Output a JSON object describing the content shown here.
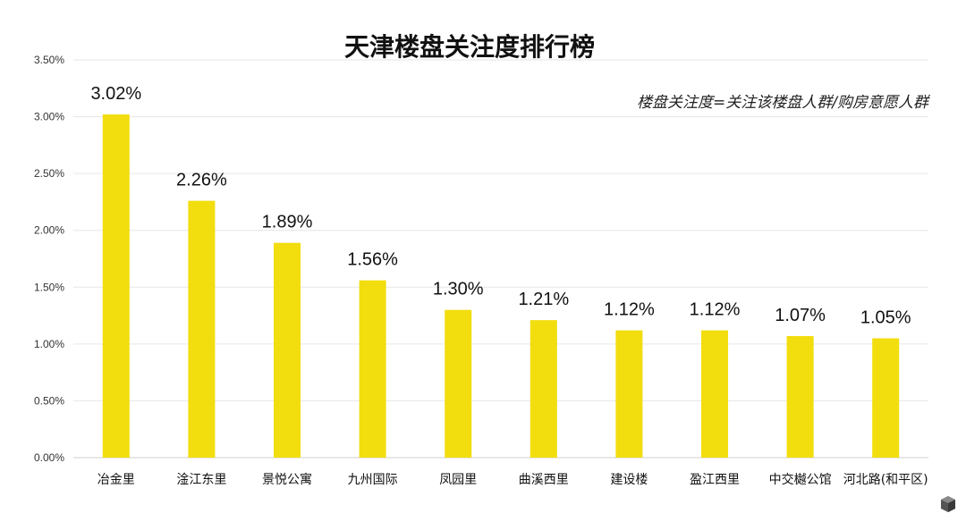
{
  "chart_data": {
    "type": "bar",
    "title": "天津楼盘关注度排行榜",
    "subtitle": "楼盘关注度=关注该楼盘人群/购房意愿人群",
    "categories": [
      "冶金里",
      "淦江东里",
      "景悦公寓",
      "九州国际",
      "凤园里",
      "曲溪西里",
      "建设楼",
      "盈江西里",
      "中交樾公馆",
      "河北路(和平区)"
    ],
    "values": [
      3.02,
      2.26,
      1.89,
      1.56,
      1.3,
      1.21,
      1.12,
      1.12,
      1.07,
      1.05
    ],
    "data_labels": [
      "3.02%",
      "2.26%",
      "1.89%",
      "1.56%",
      "1.30%",
      "1.21%",
      "1.12%",
      "1.12%",
      "1.07%",
      "1.05%"
    ],
    "y_ticks": [
      0,
      0.5,
      1.0,
      1.5,
      2.0,
      2.5,
      3.0,
      3.5
    ],
    "y_tick_labels": [
      "0.00%",
      "0.50%",
      "1.00%",
      "1.50%",
      "2.00%",
      "2.50%",
      "3.00%",
      "3.50%"
    ],
    "ylim": [
      0,
      3.5
    ],
    "xlabel": "",
    "ylabel": "",
    "grid": true,
    "legend": "none",
    "bar_color": "#f2dd0e"
  },
  "decor": {
    "logo_icon": "cube-logo-icon"
  }
}
